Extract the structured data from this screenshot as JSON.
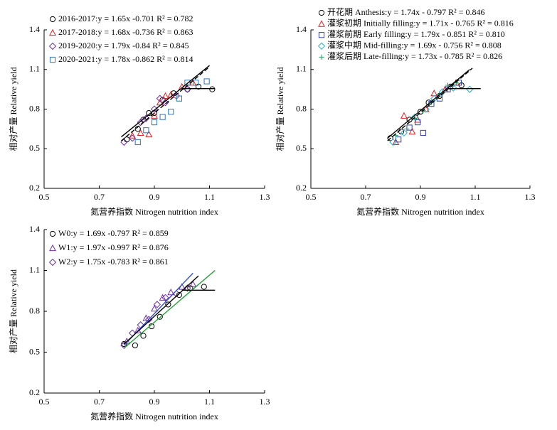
{
  "chart_data": [
    {
      "type": "scatter",
      "xlabel": "氮营养指数 Nitrogen nutrition index",
      "ylabel": "相对产量 Relative yield",
      "xlim": [
        0.5,
        1.3
      ],
      "xticks": [
        0.5,
        0.7,
        0.9,
        1.1,
        1.3
      ],
      "ylim": [
        0.2,
        1.4
      ],
      "yticks": [
        0.2,
        0.5,
        0.8,
        1.1,
        1.4
      ],
      "series": [
        {
          "name": "2016-2017:y = 1.65x -0.701  R² = 0.782",
          "marker": "circle",
          "color": "#000000",
          "x": [
            0.8,
            0.84,
            0.86,
            0.88,
            0.9,
            0.93,
            0.97,
            1.02,
            1.06,
            1.11
          ],
          "y": [
            0.57,
            0.65,
            0.72,
            0.77,
            0.77,
            0.87,
            0.92,
            0.95,
            0.97,
            0.95
          ]
        },
        {
          "name": "2017-2018:y = 1.68x -0.736  R² = 0.863",
          "marker": "triangle",
          "color": "#e02020",
          "x": [
            0.82,
            0.85,
            0.88,
            0.9,
            0.92,
            0.94,
            0.96,
            1.0,
            1.04
          ],
          "y": [
            0.6,
            0.62,
            0.61,
            0.75,
            0.85,
            0.9,
            0.91,
            0.97,
            1.0
          ]
        },
        {
          "name": "2019-2020:y = 1.79x -0.84  R² = 0.845",
          "marker": "diamond",
          "color": "#7030a0",
          "x": [
            0.79,
            0.82,
            0.85,
            0.87,
            0.9,
            0.92,
            0.94,
            0.98,
            1.02
          ],
          "y": [
            0.55,
            0.58,
            0.7,
            0.73,
            0.8,
            0.88,
            0.85,
            0.9,
            0.95
          ]
        },
        {
          "name": "2020-2021:y = 1.78x -0.862  R² = 0.814",
          "marker": "square",
          "color": "#2e75b6",
          "x": [
            0.84,
            0.87,
            0.9,
            0.93,
            0.96,
            0.99,
            1.02,
            1.05,
            1.09
          ],
          "y": [
            0.55,
            0.64,
            0.7,
            0.74,
            0.78,
            0.88,
            1.0,
            1.0,
            1.01
          ]
        }
      ],
      "lines": [
        {
          "x": [
            0.78,
            1.1
          ],
          "y": [
            0.59,
            1.13
          ],
          "color": "#000000",
          "dash": false
        },
        {
          "x": [
            0.78,
            1.1
          ],
          "y": [
            0.56,
            1.12
          ],
          "color": "#000000",
          "dash": true
        },
        {
          "x": [
            1.0,
            1.12
          ],
          "y": [
            0.955,
            0.955
          ],
          "color": "#000000",
          "dash": false
        }
      ]
    },
    {
      "type": "scatter",
      "xlabel": "氮营养指数 Nitrogen nutrition index",
      "ylabel": "相对产量 Relative yield",
      "xlim": [
        0.5,
        1.3
      ],
      "xticks": [
        0.5,
        0.7,
        0.9,
        1.1,
        1.3
      ],
      "ylim": [
        0.2,
        1.4
      ],
      "yticks": [
        0.2,
        0.5,
        0.8,
        1.1,
        1.4
      ],
      "series": [
        {
          "name": "开花期 Anthesis:y = 1.74x - 0.797  R² = 0.846",
          "marker": "circle",
          "color": "#000000",
          "x": [
            0.79,
            0.83,
            0.86,
            0.9,
            0.93,
            0.97,
            1.01,
            1.05
          ],
          "y": [
            0.58,
            0.63,
            0.72,
            0.78,
            0.85,
            0.9,
            0.97,
            0.98
          ]
        },
        {
          "name": "灌浆初期 Initially filling:y = 1.71x - 0.765  R² = 0.816",
          "marker": "triangle",
          "color": "#e02020",
          "x": [
            0.81,
            0.84,
            0.87,
            0.89,
            0.92,
            0.95,
            0.99,
            1.03
          ],
          "y": [
            0.55,
            0.75,
            0.63,
            0.72,
            0.8,
            0.92,
            0.95,
            1.0
          ]
        },
        {
          "name": "灌浆前期 Early filling:y = 1.79x - 0.851  R² = 0.810",
          "marker": "square",
          "color": "#3040b0",
          "x": [
            0.82,
            0.86,
            0.89,
            0.91,
            0.94,
            0.97,
            1.0,
            1.04
          ],
          "y": [
            0.57,
            0.66,
            0.7,
            0.62,
            0.84,
            0.88,
            0.95,
            1.0
          ]
        },
        {
          "name": "灌浆中期 Mid-filling:y = 1.69x - 0.756  R² = 0.808",
          "marker": "diamond",
          "color": "#20b0d0",
          "x": [
            0.8,
            0.84,
            0.88,
            0.92,
            0.95,
            0.98,
            1.02,
            1.08
          ],
          "y": [
            0.55,
            0.62,
            0.74,
            0.8,
            0.88,
            0.93,
            0.96,
            0.95
          ]
        },
        {
          "name": "灌浆后期 Late-filling:y = 1.73x - 0.785  R² = 0.826",
          "marker": "plus",
          "color": "#20a060",
          "x": [
            0.81,
            0.85,
            0.88,
            0.91,
            0.94,
            0.97,
            1.0,
            1.03
          ],
          "y": [
            0.6,
            0.65,
            0.73,
            0.79,
            0.85,
            0.91,
            0.98,
            1.0
          ]
        }
      ],
      "lines": [
        {
          "x": [
            0.78,
            1.08
          ],
          "y": [
            0.58,
            1.1
          ],
          "color": "#000000",
          "dash": false
        },
        {
          "x": [
            0.78,
            1.09
          ],
          "y": [
            0.56,
            1.11
          ],
          "color": "#000000",
          "dash": true
        },
        {
          "x": [
            1.0,
            1.12
          ],
          "y": [
            0.955,
            0.955
          ],
          "color": "#000000",
          "dash": false
        }
      ]
    },
    {
      "type": "scatter",
      "xlabel": "氮营养指数 Nitrogen nutrition index",
      "ylabel": "相对产量 Relative yield",
      "xlim": [
        0.5,
        1.3
      ],
      "xticks": [
        0.5,
        0.7,
        0.9,
        1.1,
        1.3
      ],
      "ylim": [
        0.2,
        1.4
      ],
      "yticks": [
        0.2,
        0.5,
        0.8,
        1.1,
        1.4
      ],
      "series": [
        {
          "name": "W0:y = 1.69x -0.797  R² = 0.859",
          "marker": "circle",
          "color": "#000000",
          "x": [
            0.79,
            0.83,
            0.86,
            0.89,
            0.92,
            0.95,
            0.99,
            1.03,
            1.08
          ],
          "y": [
            0.56,
            0.55,
            0.62,
            0.69,
            0.76,
            0.85,
            0.92,
            0.97,
            0.98
          ]
        },
        {
          "name": "W1:y = 1.97x -0.997  R² = 0.876",
          "marker": "triangle",
          "color": "#7030a0",
          "x": [
            0.8,
            0.84,
            0.87,
            0.9,
            0.93,
            0.96,
            1.0,
            1.04
          ],
          "y": [
            0.58,
            0.66,
            0.75,
            0.82,
            0.9,
            0.94,
            0.98,
            1.0
          ]
        },
        {
          "name": "W2:y = 1.75x -0.783  R² = 0.861",
          "marker": "diamond",
          "color": "#7030a0",
          "x": [
            0.79,
            0.82,
            0.85,
            0.88,
            0.91,
            0.94,
            0.98,
            1.02
          ],
          "y": [
            0.55,
            0.64,
            0.7,
            0.74,
            0.85,
            0.9,
            0.93,
            0.97
          ]
        }
      ],
      "lines": [
        {
          "x": [
            0.79,
            1.12
          ],
          "y": [
            0.53,
            1.1
          ],
          "color": "#20a030",
          "dash": false
        },
        {
          "x": [
            0.79,
            1.04
          ],
          "y": [
            0.55,
            1.08
          ],
          "color": "#3050d0",
          "dash": false
        },
        {
          "x": [
            0.79,
            1.06
          ],
          "y": [
            0.56,
            1.06
          ],
          "color": "#000000",
          "dash": false
        },
        {
          "x": [
            1.0,
            1.12
          ],
          "y": [
            0.955,
            0.955
          ],
          "color": "#000000",
          "dash": false
        }
      ]
    }
  ]
}
